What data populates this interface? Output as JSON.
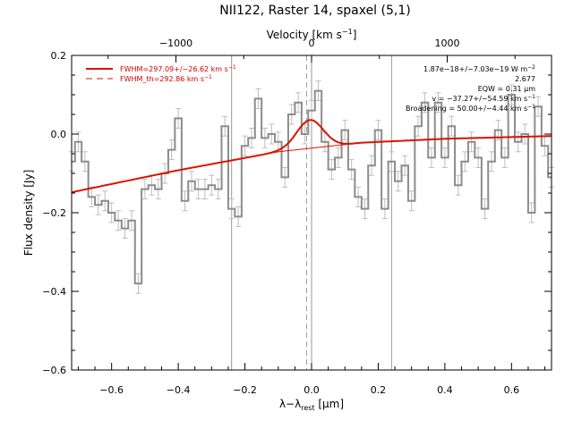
{
  "chart_data": {
    "type": "line",
    "title": "NII122, Raster 14, spaxel (5,1)",
    "xlabel": "λ−λ_rest [μm]",
    "xlabel_main": "λ−λ",
    "xlabel_sub": "rest",
    "xlabel_unit": " [μm]",
    "ylabel": "Flux density [Jy]",
    "top_xlabel": "Velocity [km s⁻¹]",
    "top_xlabel_main": "Velocity [km s",
    "top_xlabel_sup": "−1",
    "top_xlabel_end": "]",
    "xlim": [
      -0.72,
      0.72
    ],
    "ylim": [
      -0.6,
      0.2
    ],
    "x_ticks": [
      -0.6,
      -0.4,
      -0.2,
      0.0,
      0.2,
      0.4,
      0.6
    ],
    "x_tick_labels": [
      "−0.6",
      "−0.4",
      "−0.2",
      "0.0",
      "0.2",
      "0.4",
      "0.6"
    ],
    "y_ticks": [
      -0.6,
      -0.4,
      -0.2,
      0.0,
      0.2
    ],
    "y_tick_labels": [
      "−0.6",
      "−0.4",
      "−0.2",
      "0.0",
      "0.2"
    ],
    "top_ticks": [
      -1000,
      0,
      1000
    ],
    "top_tick_labels": [
      "−1000",
      "0",
      "1000"
    ],
    "velocity_um_per_1000kms": 0.407,
    "vertical_lines": [
      -0.24,
      0.24
    ],
    "dashed_vertical_line": -0.015,
    "center_line": 0.0,
    "spectrum": {
      "name": "data",
      "bin_width": 0.0203,
      "x": [
        -0.72,
        -0.7,
        -0.68,
        -0.66,
        -0.64,
        -0.62,
        -0.6,
        -0.58,
        -0.56,
        -0.54,
        -0.52,
        -0.5,
        -0.48,
        -0.46,
        -0.44,
        -0.42,
        -0.4,
        -0.38,
        -0.36,
        -0.34,
        -0.32,
        -0.3,
        -0.28,
        -0.26,
        -0.24,
        -0.22,
        -0.2,
        -0.18,
        -0.16,
        -0.14,
        -0.12,
        -0.1,
        -0.08,
        -0.06,
        -0.04,
        -0.02,
        0.0,
        0.02,
        0.04,
        0.06,
        0.08,
        0.1,
        0.12,
        0.14,
        0.16,
        0.18,
        0.2,
        0.22,
        0.24,
        0.26,
        0.28,
        0.3,
        0.32,
        0.34,
        0.36,
        0.38,
        0.4,
        0.42,
        0.44,
        0.46,
        0.48,
        0.5,
        0.52,
        0.54,
        0.56,
        0.58,
        0.6,
        0.62,
        0.64,
        0.66,
        0.68,
        0.7,
        0.72
      ],
      "y": [
        -0.07,
        -0.02,
        -0.07,
        -0.16,
        -0.18,
        -0.17,
        -0.2,
        -0.22,
        -0.24,
        -0.22,
        -0.38,
        -0.14,
        -0.13,
        -0.14,
        -0.1,
        -0.04,
        0.04,
        -0.17,
        -0.12,
        -0.14,
        -0.14,
        -0.13,
        -0.14,
        0.02,
        -0.19,
        -0.21,
        -0.03,
        -0.01,
        0.09,
        -0.01,
        0.0,
        -0.02,
        -0.11,
        0.05,
        0.08,
        0.0,
        0.06,
        0.11,
        -0.02,
        -0.09,
        -0.06,
        0.01,
        -0.09,
        -0.16,
        -0.19,
        -0.08,
        0.01,
        -0.19,
        -0.07,
        -0.12,
        -0.08,
        -0.17,
        0.02,
        0.08,
        -0.06,
        0.08,
        -0.06,
        0.02,
        -0.13,
        -0.07,
        -0.02,
        -0.06,
        -0.19,
        -0.07,
        0.01,
        -0.06,
        0.1,
        -0.02,
        0.0,
        -0.2,
        0.07,
        -0.03,
        -0.11
      ],
      "err": 0.025
    },
    "fit": {
      "name": "FWHM=297.09+/-26.62 km s⁻¹",
      "legend_main": "FWHM=297.09+/−26.62 km s",
      "legend_sup": "−1",
      "baseline_points": [
        [
          -0.72,
          -0.148
        ],
        [
          -0.4,
          -0.092
        ],
        [
          -0.1,
          -0.045
        ],
        [
          0.15,
          -0.022
        ],
        [
          0.4,
          -0.012
        ],
        [
          0.72,
          -0.005
        ]
      ],
      "gauss_center": -0.005,
      "gauss_sigma": 0.04,
      "gauss_amp": 0.072
    },
    "fit_th": {
      "name": "FWHM_th=292.86 km s⁻¹",
      "legend_main": "FWHM_th=292.86 km s",
      "legend_sup": "−1"
    },
    "annotations": [
      {
        "main": "1.87e−18+/−7.03e−19 W m",
        "sup": "−2"
      },
      {
        "main": "2.677",
        "sup": ""
      },
      {
        "main": "EQW = 0.31 μm",
        "sup": ""
      },
      {
        "main": "v = −37.27+/−54.59 km s",
        "sup": "−1"
      },
      {
        "main": "Broadening = 50.00+/−4.44 km s",
        "sup": "−1"
      }
    ],
    "colors": {
      "data": "#8c8c8c",
      "errorbar": "#bdbdbd",
      "fit": "#dd1100",
      "axes": "#000000",
      "guide": "#999999"
    },
    "legend_position": "top-left",
    "grid": false
  }
}
